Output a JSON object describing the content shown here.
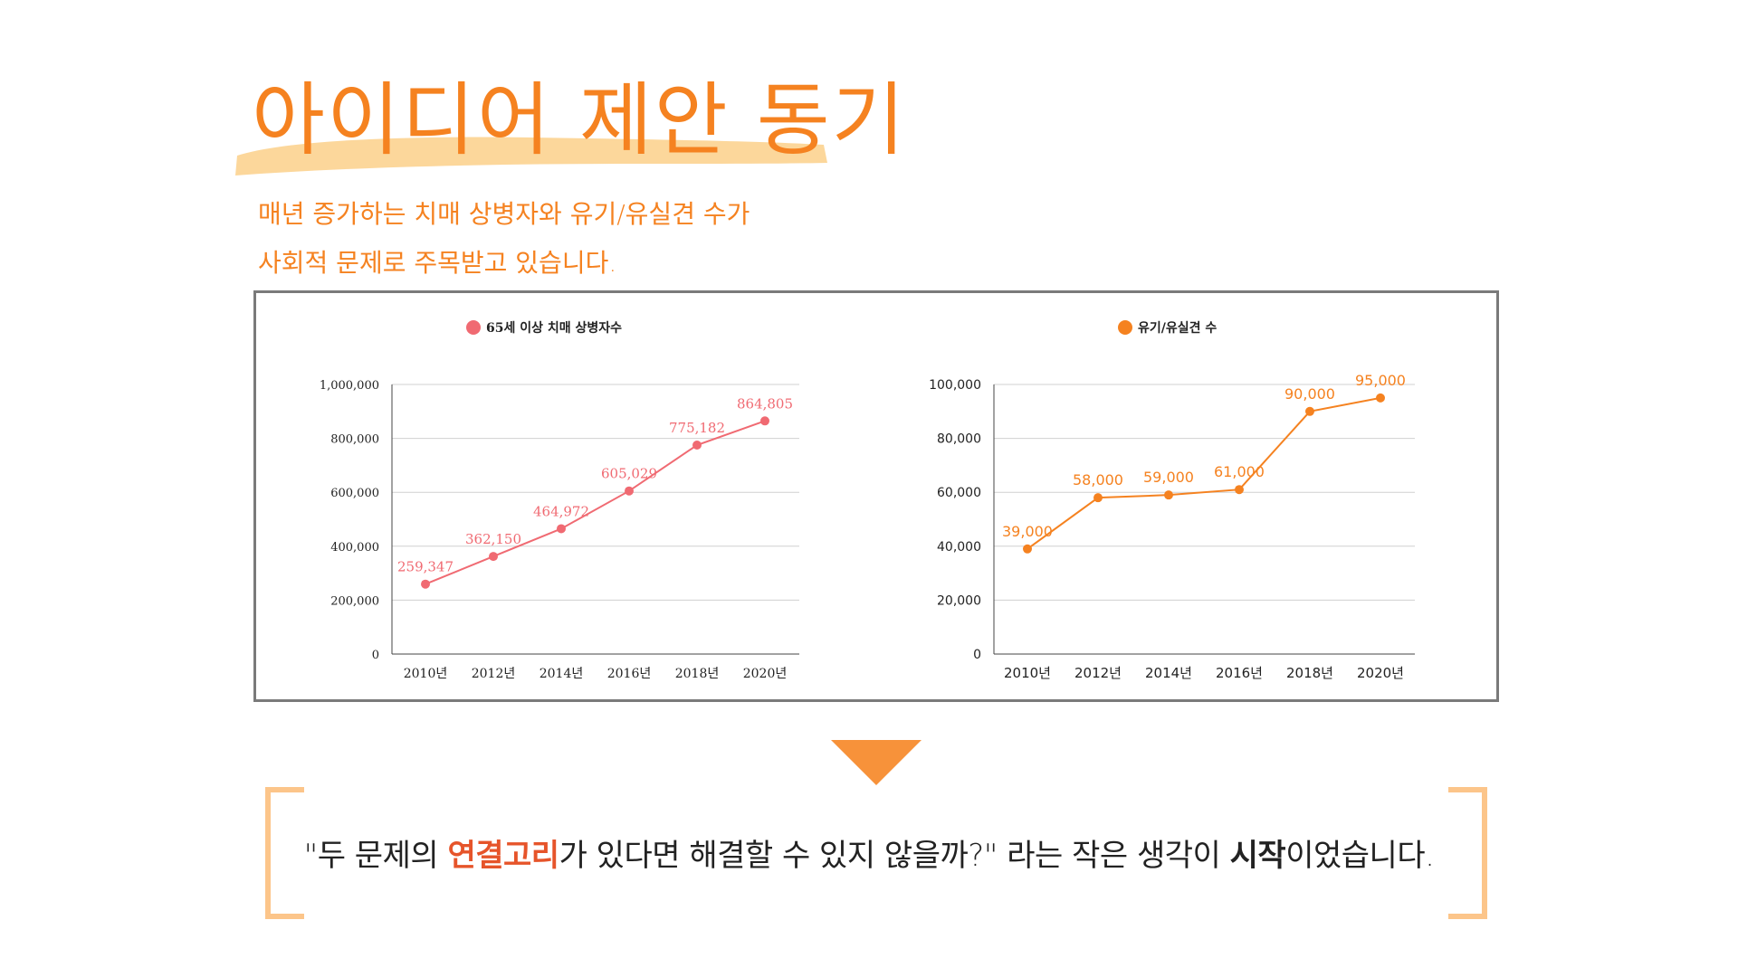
{
  "header": {
    "title": "아이디어 제안 동기",
    "subtitle_line1": "매년 증가하는 치매 상병자와 유기/유실견 수가",
    "subtitle_line2": "사회적 문제로 주목받고 있습니다."
  },
  "colors": {
    "accent": "#f58220",
    "highlight": "#fbd08a",
    "series1": "#f06a72",
    "series2": "#f58220",
    "bracket": "#fcc58a",
    "quote_highlight": "#e6542a"
  },
  "chart_data": [
    {
      "type": "line",
      "x": [
        "2010년",
        "2012년",
        "2014년",
        "2016년",
        "2018년",
        "2020년"
      ],
      "series": [
        {
          "name": "65세 이상 치매 상병자수",
          "values": [
            259347,
            362150,
            464972,
            605029,
            775182,
            864805
          ],
          "labels": [
            "259,347",
            "362,150",
            "464,972",
            "605,029",
            "775,182",
            "864,805"
          ],
          "color": "#f06a72"
        }
      ],
      "ylim": [
        0,
        1000000
      ],
      "yticks": [
        0,
        200000,
        400000,
        600000,
        800000,
        1000000
      ],
      "yticklabels": [
        "0",
        "200,000",
        "400,000",
        "600,000",
        "800,000",
        "1,000,000"
      ],
      "grid": true,
      "legend": "top-center"
    },
    {
      "type": "line",
      "x": [
        "2010년",
        "2012년",
        "2014년",
        "2016년",
        "2018년",
        "2020년"
      ],
      "series": [
        {
          "name": "유기/유실견 수",
          "values": [
            39000,
            58000,
            59000,
            61000,
            90000,
            95000
          ],
          "labels": [
            "39,000",
            "58,000",
            "59,000",
            "61,000",
            "90,000",
            "95,000"
          ],
          "color": "#f58220"
        }
      ],
      "ylim": [
        0,
        100000
      ],
      "yticks": [
        0,
        20000,
        40000,
        60000,
        80000,
        100000
      ],
      "yticklabels": [
        "0",
        "20,000",
        "40,000",
        "60,000",
        "80,000",
        "100,000"
      ],
      "grid": true,
      "legend": "top-center"
    }
  ],
  "footer": {
    "quote_part1": "\"두 문제의 ",
    "quote_highlight": "연결고리",
    "quote_part2": "가 있다면 해결할 수 있지 않을까?\" 라는 작은 생각이 ",
    "quote_bold": "시작",
    "quote_part3": "이었습니다."
  }
}
